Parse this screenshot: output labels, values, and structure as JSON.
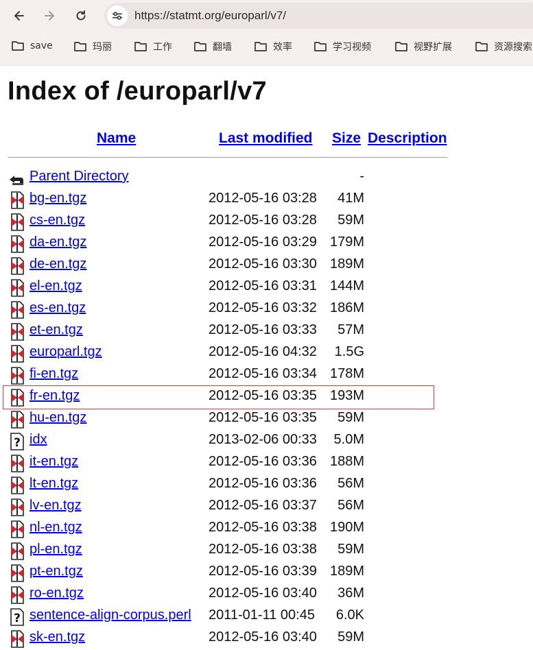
{
  "browser": {
    "url": "https://statmt.org/europarl/v7/",
    "bookmarks": [
      "save",
      "玛丽",
      "工作",
      "翻墙",
      "效率",
      "学习视频",
      "视野扩展",
      "资源搜索"
    ]
  },
  "page": {
    "title": "Index of /europarl/v7",
    "columns": {
      "name": "Name",
      "last_modified": "Last modified",
      "size": "Size",
      "description": "Description"
    },
    "parent": {
      "name": "Parent Directory",
      "size": "-"
    },
    "rows": [
      {
        "name": "bg-en.tgz",
        "date": "2012-05-16 03:28",
        "size": "41M",
        "icon": "archive"
      },
      {
        "name": "cs-en.tgz",
        "date": "2012-05-16 03:28",
        "size": "59M",
        "icon": "archive"
      },
      {
        "name": "da-en.tgz",
        "date": "2012-05-16 03:29",
        "size": "179M",
        "icon": "archive"
      },
      {
        "name": "de-en.tgz",
        "date": "2012-05-16 03:30",
        "size": "189M",
        "icon": "archive"
      },
      {
        "name": "el-en.tgz",
        "date": "2012-05-16 03:31",
        "size": "144M",
        "icon": "archive"
      },
      {
        "name": "es-en.tgz",
        "date": "2012-05-16 03:32",
        "size": "186M",
        "icon": "archive"
      },
      {
        "name": "et-en.tgz",
        "date": "2012-05-16 03:33",
        "size": "57M",
        "icon": "archive"
      },
      {
        "name": "europarl.tgz",
        "date": "2012-05-16 04:32",
        "size": "1.5G",
        "icon": "archive"
      },
      {
        "name": "fi-en.tgz",
        "date": "2012-05-16 03:34",
        "size": "178M",
        "icon": "archive"
      },
      {
        "name": "fr-en.tgz",
        "date": "2012-05-16 03:35",
        "size": "193M",
        "icon": "archive"
      },
      {
        "name": "hu-en.tgz",
        "date": "2012-05-16 03:35",
        "size": "59M",
        "icon": "archive"
      },
      {
        "name": "idx",
        "date": "2013-02-06 00:33",
        "size": "5.0M",
        "icon": "unknown"
      },
      {
        "name": "it-en.tgz",
        "date": "2012-05-16 03:36",
        "size": "188M",
        "icon": "archive"
      },
      {
        "name": "lt-en.tgz",
        "date": "2012-05-16 03:36",
        "size": "56M",
        "icon": "archive"
      },
      {
        "name": "lv-en.tgz",
        "date": "2012-05-16 03:37",
        "size": "56M",
        "icon": "archive"
      },
      {
        "name": "nl-en.tgz",
        "date": "2012-05-16 03:38",
        "size": "190M",
        "icon": "archive"
      },
      {
        "name": "pl-en.tgz",
        "date": "2012-05-16 03:38",
        "size": "59M",
        "icon": "archive"
      },
      {
        "name": "pt-en.tgz",
        "date": "2012-05-16 03:39",
        "size": "189M",
        "icon": "archive"
      },
      {
        "name": "ro-en.tgz",
        "date": "2012-05-16 03:40",
        "size": "36M",
        "icon": "archive"
      },
      {
        "name": "sentence-align-corpus.perl",
        "date": "2011-01-11 00:45",
        "size": "6.0K",
        "icon": "unknown"
      },
      {
        "name": "sk-en.tgz",
        "date": "2012-05-16 03:40",
        "size": "59M",
        "icon": "archive"
      }
    ],
    "highlighted_row": "fr-en.tgz",
    "highlight_color": "#e03a3a",
    "link_color": "#0000ee"
  }
}
